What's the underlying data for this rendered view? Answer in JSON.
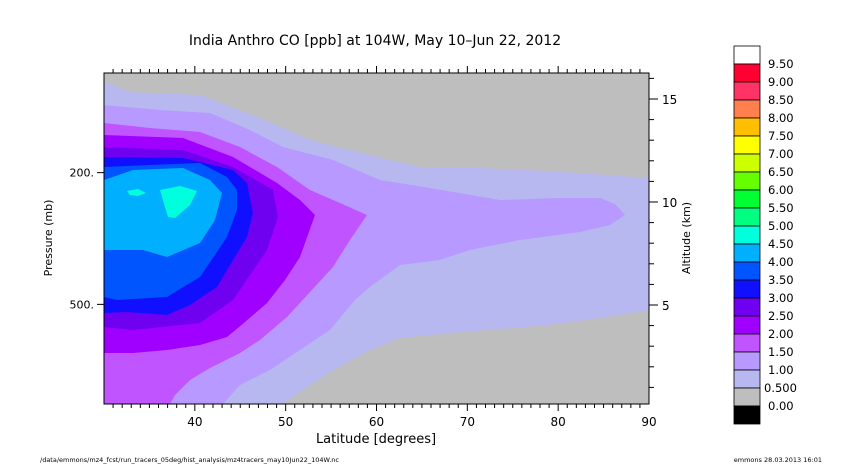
{
  "chart_data": {
    "type": "heatmap",
    "subtype": "filled-contour",
    "title": "India Anthro CO [ppb] at 104W, May 10–Jun 22, 2012",
    "xlabel": "Latitude [degrees]",
    "ylabel": "Pressure (mb)",
    "y2label": "Altitude (km)",
    "xlim": [
      30,
      90
    ],
    "ylim": [
      1000,
      100
    ],
    "yscale": "log",
    "x_ticks": [
      40,
      50,
      60,
      70,
      80,
      90
    ],
    "y_ticks": [
      200,
      500
    ],
    "y_tick_labels": [
      "200.",
      "500."
    ],
    "y2_ticks": [
      5,
      10,
      15
    ],
    "y2_range_km": [
      1,
      16
    ],
    "levels": [
      "9.50",
      "9.00",
      "8.50",
      "8.00",
      "7.50",
      "7.00",
      "6.50",
      "6.00",
      "5.50",
      "5.00",
      "4.50",
      "4.00",
      "3.50",
      "3.00",
      "2.50",
      "2.00",
      "1.50",
      "1.00",
      "0.500",
      "0.00"
    ],
    "colors": [
      "#ffffff",
      "#ff0033",
      "#ff3366",
      "#ff7f4f",
      "#ffbf00",
      "#ffff00",
      "#ccff00",
      "#66ff00",
      "#00ff33",
      "#00ff80",
      "#00ffdd",
      "#00b0ff",
      "#0055ff",
      "#1010ff",
      "#7000f0",
      "#a000ff",
      "#c055ff",
      "#b899ff",
      "#b8b8f0",
      "#bebebe",
      "#000000"
    ],
    "max_region": {
      "latitude_approx": 37,
      "pressure_approx_mb": 230,
      "value_range": "4.50–5.00"
    }
  },
  "footer": {
    "path": "/data/emmons/mz4_fcst/run_tracers_05deg/hist_analysis/mz4tracers_may10Jun22_104W.nc",
    "stamp": "emmons 28.03.2013 16:01"
  }
}
